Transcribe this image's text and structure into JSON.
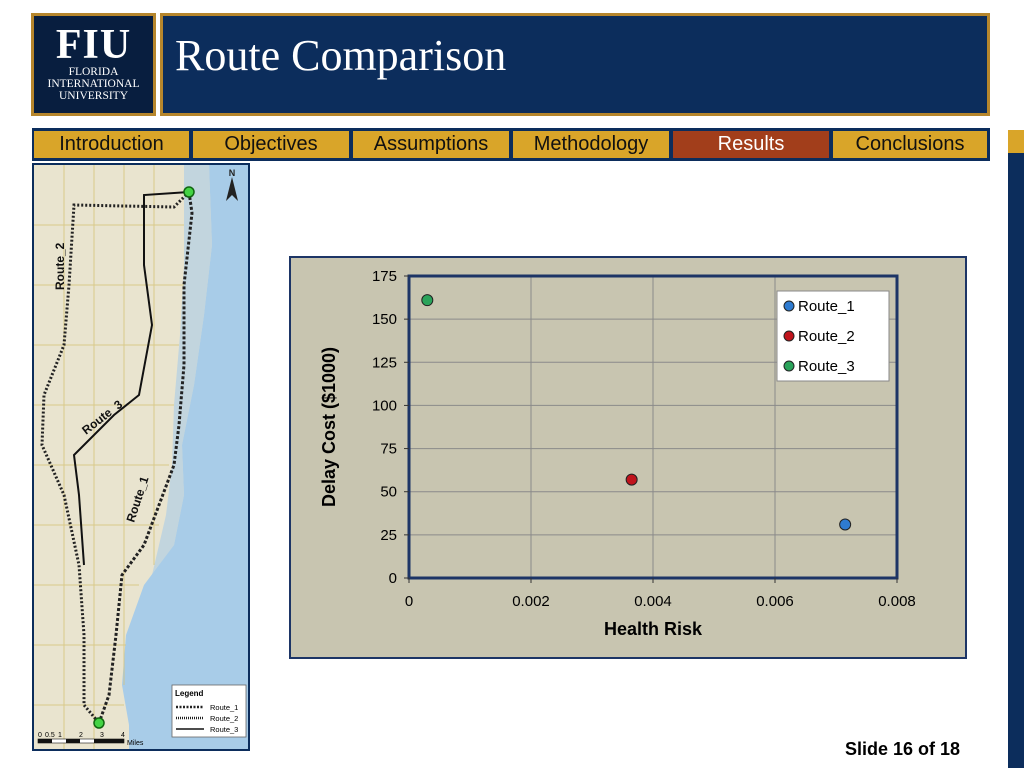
{
  "logo": {
    "mark": "FIU",
    "lines": [
      "FLORIDA",
      "INTERNATIONAL",
      "UNIVERSITY"
    ]
  },
  "title": "Route Comparison",
  "nav": {
    "tabs": [
      {
        "label": "Introduction",
        "active": false
      },
      {
        "label": "Objectives",
        "active": false
      },
      {
        "label": "Assumptions",
        "active": false
      },
      {
        "label": "Methodology",
        "active": false
      },
      {
        "label": "Results",
        "active": true
      },
      {
        "label": "Conclusions",
        "active": false
      }
    ]
  },
  "map": {
    "route_labels": [
      "Route_2",
      "Route_3",
      "Route_1"
    ],
    "north": "N",
    "legend": {
      "title": "Legend",
      "items": [
        "Route_1",
        "Route_2",
        "Route_3"
      ]
    },
    "scale": {
      "ticks": [
        "0",
        "0.5",
        "1",
        "2",
        "3",
        "4"
      ],
      "unit": "Miles"
    }
  },
  "chart_data": {
    "type": "scatter",
    "title": "",
    "xlabel": "Health Risk",
    "ylabel": "Delay Cost ($1000)",
    "xlim": [
      0,
      0.008
    ],
    "ylim": [
      0,
      175
    ],
    "xticks": [
      "0",
      "0.002",
      "0.004",
      "0.006",
      "0.008"
    ],
    "yticks": [
      "0",
      "25",
      "50",
      "75",
      "100",
      "125",
      "150",
      "175"
    ],
    "grid": true,
    "legend_position": "top-right",
    "series": [
      {
        "name": "Route_1",
        "color": "#2e7bd1",
        "points": [
          [
            0.00715,
            31
          ]
        ]
      },
      {
        "name": "Route_2",
        "color": "#c0141c",
        "points": [
          [
            0.00365,
            57
          ]
        ]
      },
      {
        "name": "Route_3",
        "color": "#2aa35a",
        "points": [
          [
            0.0003,
            161
          ]
        ]
      }
    ]
  },
  "footer": {
    "slide": "Slide 16 of 18"
  }
}
